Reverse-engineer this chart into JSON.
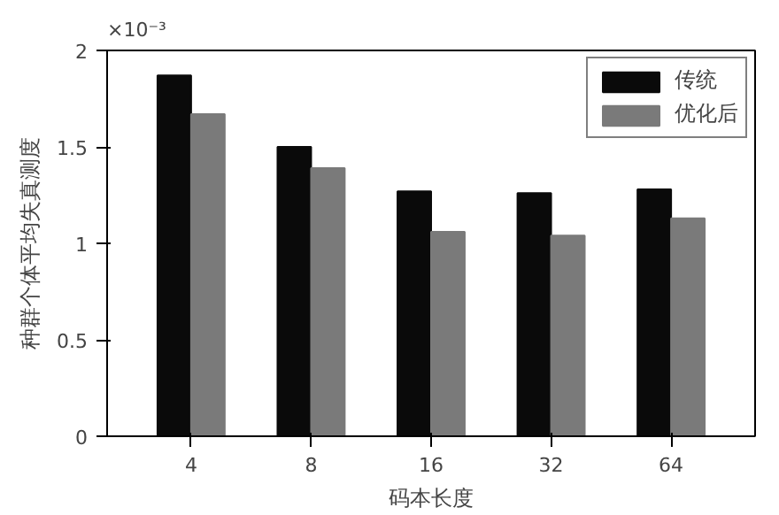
{
  "chart_data": {
    "type": "bar",
    "xlabel": "码本长度",
    "ylabel": "种群个体平均失真测度",
    "annotations": [
      "×10⁻³"
    ],
    "categories": [
      "4",
      "8",
      "16",
      "32",
      "64"
    ],
    "series": [
      {
        "name": "传统",
        "color": "#0a0a0a",
        "values": [
          1.87,
          1.5,
          1.27,
          1.26,
          1.28
        ]
      },
      {
        "name": "优化后",
        "color": "#7a7a7a",
        "values": [
          1.67,
          1.39,
          1.06,
          1.04,
          1.13
        ]
      }
    ],
    "ylim": [
      0,
      2
    ],
    "yticks": [
      0,
      0.5,
      1,
      1.5,
      2
    ],
    "grid": false,
    "legend": "top right"
  }
}
